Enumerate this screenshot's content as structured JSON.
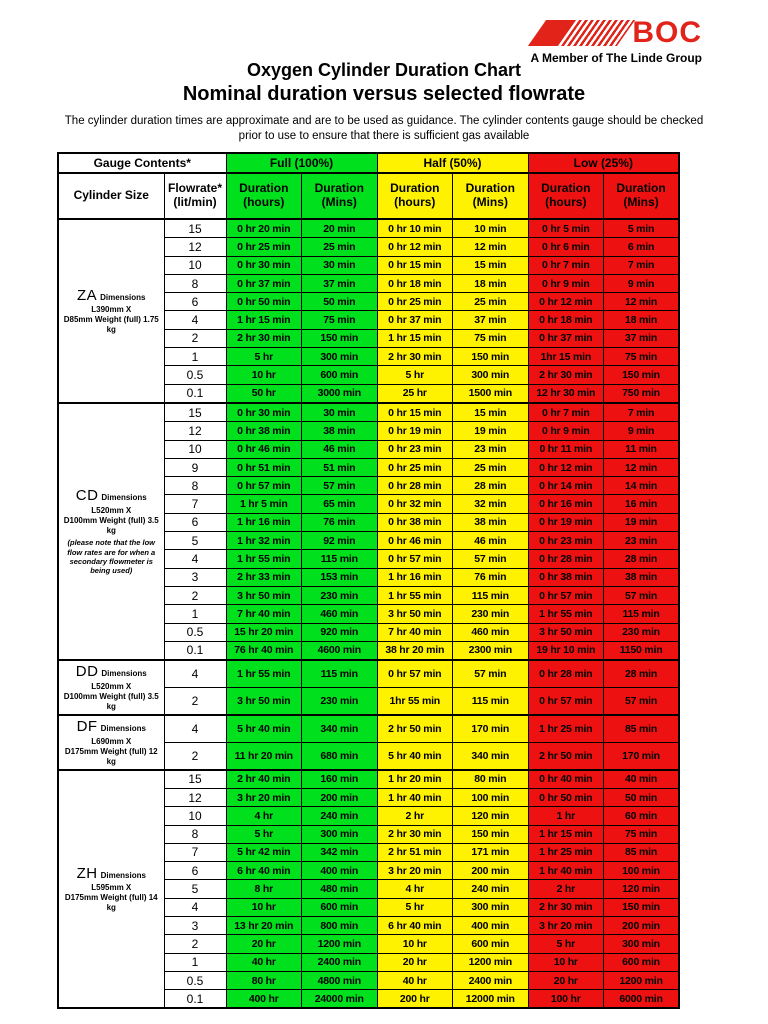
{
  "logo": {
    "brand": "BOC",
    "tagline": "A Member of The Linde Group",
    "brand_color": "#e2231a"
  },
  "page": {
    "title_line1": "Oxygen Cylinder Duration Chart",
    "title_line2": "Nominal duration versus selected flowrate",
    "note": "The cylinder duration times are approximate and are to be used as guidance.  The cylinder contents gauge should be checked prior to use to ensure that there is sufficient gas available"
  },
  "colors": {
    "full": "#00e01c",
    "half": "#fff200",
    "low": "#ee1111"
  },
  "table": {
    "header": {
      "gauge_contents": "Gauge Contents*",
      "full": "Full (100%)",
      "half": "Half (50%)",
      "low": "Low (25%)",
      "cylinder_size": "Cylinder Size",
      "flowrate": "Flowrate*",
      "flowrate_unit": "(lit/min)",
      "duration": "Duration",
      "hours": "(hours)",
      "mins": "(Mins)"
    },
    "groups": [
      {
        "code": "ZA",
        "desc1": "Dimensions L390mm X",
        "desc2": "D85mm Weight (full) 1.75 kg",
        "note": "",
        "rows": [
          [
            "15",
            "0 hr 20 min",
            "20 min",
            "0 hr 10 min",
            "10 min",
            "0 hr 5 min",
            "5 min"
          ],
          [
            "12",
            "0 hr 25 min",
            "25 min",
            "0 hr 12 min",
            "12 min",
            "0 hr 6 min",
            "6 min"
          ],
          [
            "10",
            "0 hr 30 min",
            "30 min",
            "0 hr 15 min",
            "15 min",
            "0 hr 7 min",
            "7 min"
          ],
          [
            "8",
            "0 hr 37 min",
            "37 min",
            "0 hr 18 min",
            "18 min",
            "0 hr 9 min",
            "9 min"
          ],
          [
            "6",
            "0 hr 50 min",
            "50 min",
            "0 hr 25 min",
            "25 min",
            "0 hr 12 min",
            "12 min"
          ],
          [
            "4",
            "1 hr 15 min",
            "75 min",
            "0 hr 37 min",
            "37 min",
            "0 hr 18 min",
            "18 min"
          ],
          [
            "2",
            "2 hr 30 min",
            "150 min",
            "1 hr 15 min",
            "75 min",
            "0 hr 37 min",
            "37 min"
          ],
          [
            "1",
            "5 hr",
            "300 min",
            "2 hr 30 min",
            "150 min",
            "1hr 15 min",
            "75 min"
          ],
          [
            "0.5",
            "10 hr",
            "600 min",
            "5 hr",
            "300 min",
            "2 hr 30 min",
            "150 min"
          ],
          [
            "0.1",
            "50 hr",
            "3000 min",
            "25 hr",
            "1500 min",
            "12 hr 30 min",
            "750 min"
          ]
        ]
      },
      {
        "code": "CD",
        "desc1": "Dimensions L520mm X",
        "desc2": "D100mm Weight (full) 3.5 kg",
        "note": "(please note that the low flow rates are for when a secondary flowmeter is being used)",
        "rows": [
          [
            "15",
            "0 hr 30 min",
            "30 min",
            "0 hr 15 min",
            "15 min",
            "0 hr 7 min",
            "7 min"
          ],
          [
            "12",
            "0 hr 38 min",
            "38 min",
            "0 hr 19 min",
            "19 min",
            "0 hr 9 min",
            "9 min"
          ],
          [
            "10",
            "0 hr 46 min",
            "46 min",
            "0 hr 23 min",
            "23 min",
            "0 hr 11 min",
            "11 min"
          ],
          [
            "9",
            "0 hr 51 min",
            "51 min",
            "0 hr 25 min",
            "25 min",
            "0 hr 12 min",
            "12 min"
          ],
          [
            "8",
            "0 hr 57 min",
            "57 min",
            "0 hr 28 min",
            "28 min",
            "0 hr 14 min",
            "14 min"
          ],
          [
            "7",
            "1 hr 5 min",
            "65 min",
            "0 hr 32 min",
            "32 min",
            "0 hr 16 min",
            "16 min"
          ],
          [
            "6",
            "1 hr 16 min",
            "76 min",
            "0 hr 38 min",
            "38 min",
            "0 hr 19 min",
            "19 min"
          ],
          [
            "5",
            "1 hr 32 min",
            "92 min",
            "0 hr 46 min",
            "46 min",
            "0 hr 23 min",
            "23 min"
          ],
          [
            "4",
            "1 hr 55 min",
            "115 min",
            "0 hr 57 min",
            "57 min",
            "0 hr 28 min",
            "28 min"
          ],
          [
            "3",
            "2 hr 33 min",
            "153 min",
            "1 hr 16 min",
            "76 min",
            "0 hr 38 min",
            "38 min"
          ],
          [
            "2",
            "3 hr 50 min",
            "230 min",
            "1 hr 55 min",
            "115 min",
            "0 hr 57 min",
            "57 min"
          ],
          [
            "1",
            "7 hr 40 min",
            "460 min",
            "3 hr 50 min",
            "230 min",
            "1 hr 55 min",
            "115 min"
          ],
          [
            "0.5",
            "15 hr 20 min",
            "920 min",
            "7 hr 40 min",
            "460 min",
            "3 hr 50 min",
            "230 min"
          ],
          [
            "0.1",
            "76 hr 40 min",
            "4600 min",
            "38 hr 20 min",
            "2300 min",
            "19 hr 10 min",
            "1150 min"
          ]
        ]
      },
      {
        "code": "DD",
        "desc1": "Dimensions L520mm X",
        "desc2": "D100mm Weight (full) 3.5 kg",
        "note": "",
        "rows": [
          [
            "4",
            "1 hr 55 min",
            "115 min",
            "0 hr 57 min",
            "57 min",
            "0 hr 28 min",
            "28 min"
          ],
          [
            "2",
            "3 hr 50 min",
            "230 min",
            "1hr 55 min",
            "115 min",
            "0 hr 57 min",
            "57 min"
          ]
        ]
      },
      {
        "code": "DF",
        "desc1": "Dimensions L690mm X",
        "desc2": "D175mm Weight (full) 12 kg",
        "note": "",
        "rows": [
          [
            "4",
            "5 hr 40 min",
            "340 min",
            "2 hr 50 min",
            "170 min",
            "1 hr 25 min",
            "85 min"
          ],
          [
            "2",
            "11 hr 20 min",
            "680 min",
            "5 hr 40 min",
            "340 min",
            "2 hr 50 min",
            "170 min"
          ]
        ]
      },
      {
        "code": "ZH",
        "desc1": "Dimensions L595mm X",
        "desc2": "D175mm Weight (full) 14 kg",
        "note": "",
        "rows": [
          [
            "15",
            "2 hr 40 min",
            "160 min",
            "1 hr 20 min",
            "80 min",
            "0 hr 40 min",
            "40 min"
          ],
          [
            "12",
            "3 hr 20 min",
            "200 min",
            "1 hr 40 min",
            "100 min",
            "0 hr 50 min",
            "50 min"
          ],
          [
            "10",
            "4 hr",
            "240 min",
            "2 hr",
            "120 min",
            "1 hr",
            "60 min"
          ],
          [
            "8",
            "5 hr",
            "300 min",
            "2 hr 30 min",
            "150 min",
            "1 hr 15 min",
            "75 min"
          ],
          [
            "7",
            "5 hr 42 min",
            "342 min",
            "2 hr 51 min",
            "171 min",
            "1 hr 25 min",
            "85 min"
          ],
          [
            "6",
            "6 hr 40 min",
            "400 min",
            "3 hr 20 min",
            "200 min",
            "1 hr 40 min",
            "100 min"
          ],
          [
            "5",
            "8 hr",
            "480 min",
            "4 hr",
            "240 min",
            "2 hr",
            "120 min"
          ],
          [
            "4",
            "10 hr",
            "600 min",
            "5 hr",
            "300 min",
            "2 hr 30 min",
            "150 min"
          ],
          [
            "3",
            "13 hr 20 min",
            "800 min",
            "6 hr 40 min",
            "400 min",
            "3 hr 20 min",
            "200 min"
          ],
          [
            "2",
            "20 hr",
            "1200 min",
            "10 hr",
            "600 min",
            "5 hr",
            "300 min"
          ],
          [
            "1",
            "40 hr",
            "2400 min",
            "20 hr",
            "1200 min",
            "10 hr",
            "600 min"
          ],
          [
            "0.5",
            "80 hr",
            "4800 min",
            "40 hr",
            "2400 min",
            "20 hr",
            "1200 min"
          ],
          [
            "0.1",
            "400 hr",
            "24000 min",
            "200 hr",
            "12000 min",
            "100 hr",
            "6000 min"
          ]
        ]
      }
    ]
  }
}
